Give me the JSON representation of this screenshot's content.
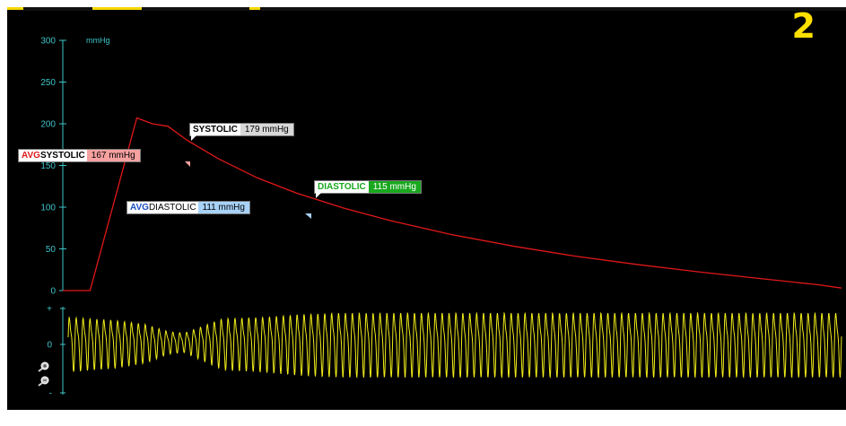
{
  "page_number": "2",
  "pressure_axis": {
    "unit": "mmHg",
    "ticks": [
      "300",
      "250",
      "200",
      "150",
      "100",
      "50",
      "0"
    ]
  },
  "oscillation_axis": {
    "ticks": [
      "+",
      "0",
      "-"
    ]
  },
  "callouts": {
    "systolic": {
      "label": "SYSTOLIC",
      "value": "179 mmHg"
    },
    "avg_systolic": {
      "prefix": "AVG",
      "label": "SYSTOLIC",
      "value": "167 mmHg"
    },
    "diastolic": {
      "label": "DIASTOLIC",
      "value": "115 mmHg"
    },
    "avg_diastolic": {
      "prefix": "AVG",
      "label": "DIASTOLIC",
      "value": "111 mmHg"
    }
  },
  "colors": {
    "background": "#000000",
    "axis": "#3ec3c8",
    "pressure_curve": "#e01818",
    "oscillation": "#f0ec1a",
    "page_number": "#ffe000",
    "systolic_bg": "#d8d8d8",
    "avg_systolic_bg": "#f6a0a0",
    "diastolic_bg": "#19a81e",
    "avg_diastolic_bg": "#a8d2f8"
  },
  "icons": [
    "zoom-in-icon",
    "zoom-out-icon"
  ],
  "chart_data": [
    {
      "type": "line",
      "ylim": [
        0,
        300
      ],
      "ylabel": "mmHg",
      "yticks": [
        0,
        50,
        100,
        150,
        200,
        250,
        300
      ],
      "x_range": [
        0,
        100
      ],
      "series": [
        {
          "x": [
            0,
            3.5,
            9.5,
            11.5,
            13.5,
            16,
            20,
            25,
            30,
            36,
            42,
            50,
            58,
            66,
            74,
            82,
            90,
            97,
            100
          ],
          "values": [
            0,
            0,
            207,
            200,
            197,
            180,
            158,
            135,
            117,
            99,
            84,
            67,
            53,
            41,
            31,
            22,
            14,
            7,
            3
          ]
        }
      ],
      "annotations": [
        {
          "text": "SYSTOLIC 179 mmHg",
          "value": 179
        },
        {
          "text": "AVG SYSTOLIC 167 mmHg",
          "value": 167
        },
        {
          "text": "DIASTOLIC 115 mmHg",
          "value": 115
        },
        {
          "text": "AVG DIASTOLIC 111 mmHg",
          "value": 111
        }
      ]
    },
    {
      "type": "line",
      "yticks_labels": [
        "+",
        "0",
        "-"
      ],
      "x_range": [
        0,
        100
      ],
      "series": [
        {
          "envelope_x": [
            0,
            6,
            10,
            13,
            15,
            20,
            25,
            30,
            35,
            38,
            45,
            55,
            65,
            75,
            85,
            95,
            100
          ],
          "envelope_amplitude": [
            0.85,
            0.75,
            0.6,
            0.35,
            0.3,
            0.8,
            0.85,
            0.95,
            1.0,
            1.0,
            1.0,
            1.0,
            1.0,
            1.0,
            1.0,
            1.0,
            1.0
          ],
          "cycles": 112
        }
      ]
    }
  ]
}
